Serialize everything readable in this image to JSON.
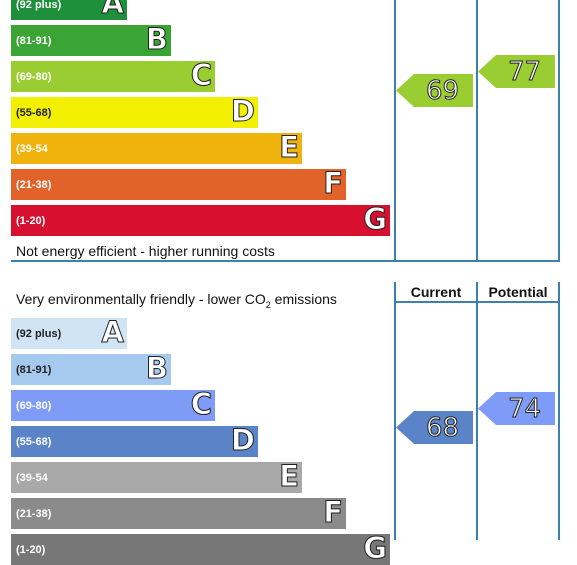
{
  "energy": {
    "bands": [
      {
        "range": "(92 plus)",
        "letter": "A",
        "color": "#1e8f3a"
      },
      {
        "range": "(81-91)",
        "letter": "B",
        "color": "#3aa535"
      },
      {
        "range": "(69-80)",
        "letter": "C",
        "color": "#9acd32"
      },
      {
        "range": "(55-68)",
        "letter": "D",
        "color": "#f3ef00"
      },
      {
        "range": "(39-54",
        "letter": "E",
        "color": "#f0b20c"
      },
      {
        "range": "(21-38)",
        "letter": "F",
        "color": "#e2632a"
      },
      {
        "range": "(1-20)",
        "letter": "G",
        "color": "#d8102f"
      }
    ],
    "footer_text": "Not energy efficient - higher running costs",
    "current": {
      "value": "69",
      "color": "#9acd32"
    },
    "potential": {
      "value": "77",
      "color": "#9acd32"
    }
  },
  "environment": {
    "header_text": "Very environmentally friendly - lower CO",
    "header_sub": "2",
    "header_tail": " emissions",
    "col_current": "Current",
    "col_potential": "Potential",
    "bands": [
      {
        "range": "(92 plus)",
        "letter": "A",
        "color": "#cfe4f5"
      },
      {
        "range": "(81-91)",
        "letter": "B",
        "color": "#a6c9ef"
      },
      {
        "range": "(69-80)",
        "letter": "C",
        "color": "#7e9bf7"
      },
      {
        "range": "(55-68)",
        "letter": "D",
        "color": "#5b84c8"
      },
      {
        "range": "(39-54",
        "letter": "E",
        "color": "#a8a8a8"
      },
      {
        "range": "(21-38)",
        "letter": "F",
        "color": "#8b8b8b"
      },
      {
        "range": "(1-20)",
        "letter": "G",
        "color": "#777777"
      }
    ],
    "current": {
      "value": "68",
      "color": "#5b84c8"
    },
    "potential": {
      "value": "74",
      "color": "#7e9bf7"
    }
  }
}
